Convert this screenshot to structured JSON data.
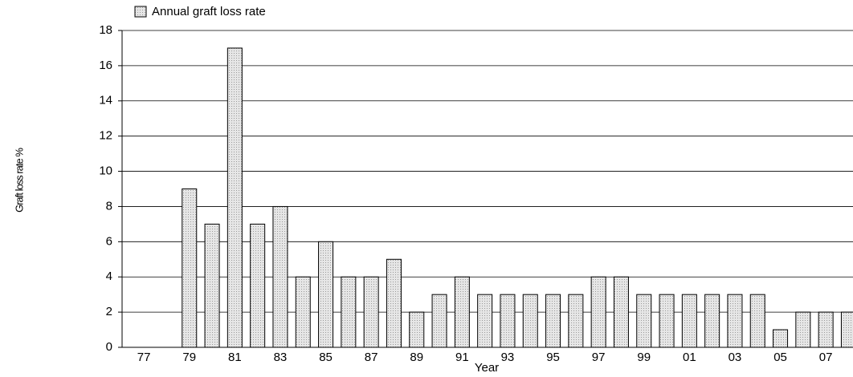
{
  "chart_data": {
    "type": "bar",
    "legend_label": "Annual graft loss rate",
    "x_label": "Year",
    "y_label": "Graft loss rate %",
    "categories": [
      "77",
      null,
      "79",
      null,
      "81",
      null,
      "83",
      null,
      "85",
      null,
      "87",
      null,
      "89",
      null,
      "91",
      null,
      "93",
      null,
      "95",
      null,
      "97",
      null,
      "99",
      null,
      "01",
      null,
      "03",
      null,
      "05",
      null,
      "07",
      null
    ],
    "values": [
      null,
      null,
      9,
      7,
      17,
      7,
      8,
      4,
      6,
      4,
      4,
      5,
      2,
      3,
      4,
      3,
      3,
      3,
      3,
      3,
      4,
      4,
      3,
      3,
      3,
      3,
      3,
      3,
      1,
      2,
      2,
      2
    ],
    "color": "#d9d9d9",
    "ylim": [
      0,
      18
    ],
    "yticks": [
      0,
      2,
      4,
      6,
      8,
      10,
      12,
      14,
      16,
      18
    ],
    "grid": true
  }
}
